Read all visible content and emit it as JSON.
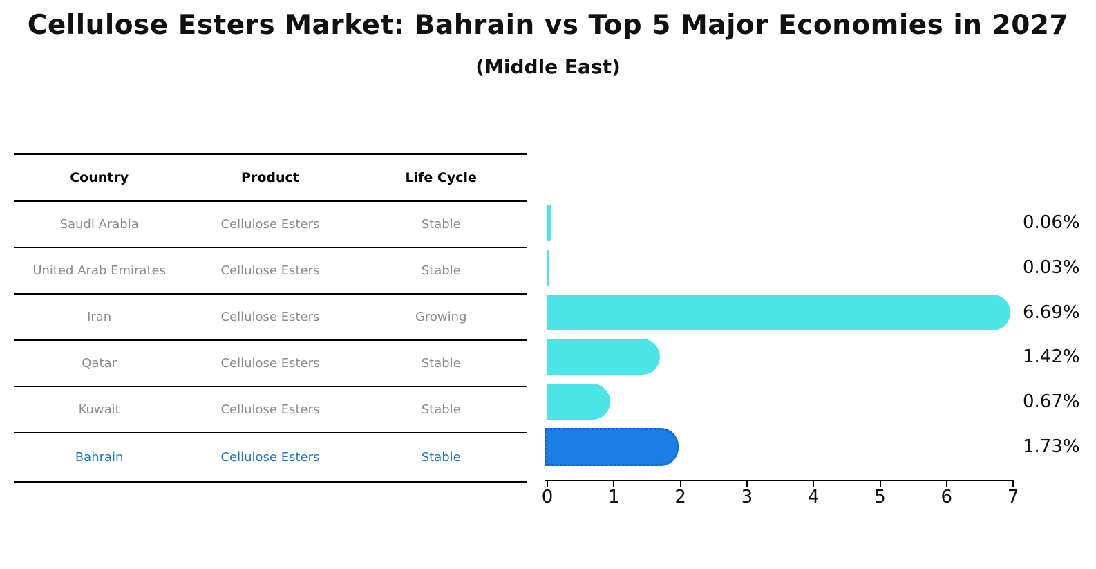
{
  "title": "Cellulose Esters Market: Bahrain vs Top 5 Major Economies in 2027",
  "subtitle": "(Middle East)",
  "table": {
    "headers": [
      "Country",
      "Product",
      "Life Cycle"
    ],
    "rows": [
      {
        "country": "Saudi Arabia",
        "product": "Cellulose Esters",
        "life_cycle": "Stable",
        "highlighted": false
      },
      {
        "country": "United Arab Emirates",
        "product": "Cellulose Esters",
        "life_cycle": "Stable",
        "highlighted": false
      },
      {
        "country": "Iran",
        "product": "Cellulose Esters",
        "life_cycle": "Growing",
        "highlighted": false
      },
      {
        "country": "Qatar",
        "product": "Cellulose Esters",
        "life_cycle": "Stable",
        "highlighted": false
      },
      {
        "country": "Kuwait",
        "product": "Cellulose Esters",
        "life_cycle": "Stable",
        "highlighted": false
      },
      {
        "country": "Bahrain",
        "product": "Cellulose Esters",
        "life_cycle": "Stable",
        "highlighted": true
      }
    ]
  },
  "chart_data": {
    "type": "bar",
    "orientation": "horizontal",
    "title": "Cellulose Esters Market: Bahrain vs Top 5 Major Economies in 2027",
    "subtitle": "(Middle East)",
    "categories": [
      "Saudi Arabia",
      "United Arab Emirates",
      "Iran",
      "Qatar",
      "Kuwait",
      "Bahrain"
    ],
    "values": [
      0.06,
      0.03,
      6.69,
      1.42,
      0.67,
      1.73
    ],
    "value_labels": [
      "0.06%",
      "0.03%",
      "6.69%",
      "1.42%",
      "0.67%",
      "1.73%"
    ],
    "xlim": [
      0,
      7
    ],
    "xticks": [
      "0",
      "1",
      "2",
      "3",
      "4",
      "5",
      "6",
      "7"
    ],
    "grid": false,
    "legend": "none",
    "highlight_category": "Bahrain",
    "colors": {
      "bar": "#4BE5E7",
      "highlight_bar": "#1A7EE6",
      "highlight_border": "#1563CE",
      "highlight_text": "#1F77C4",
      "table_text": "#8C8C8C",
      "axis_text": "#111111"
    }
  }
}
